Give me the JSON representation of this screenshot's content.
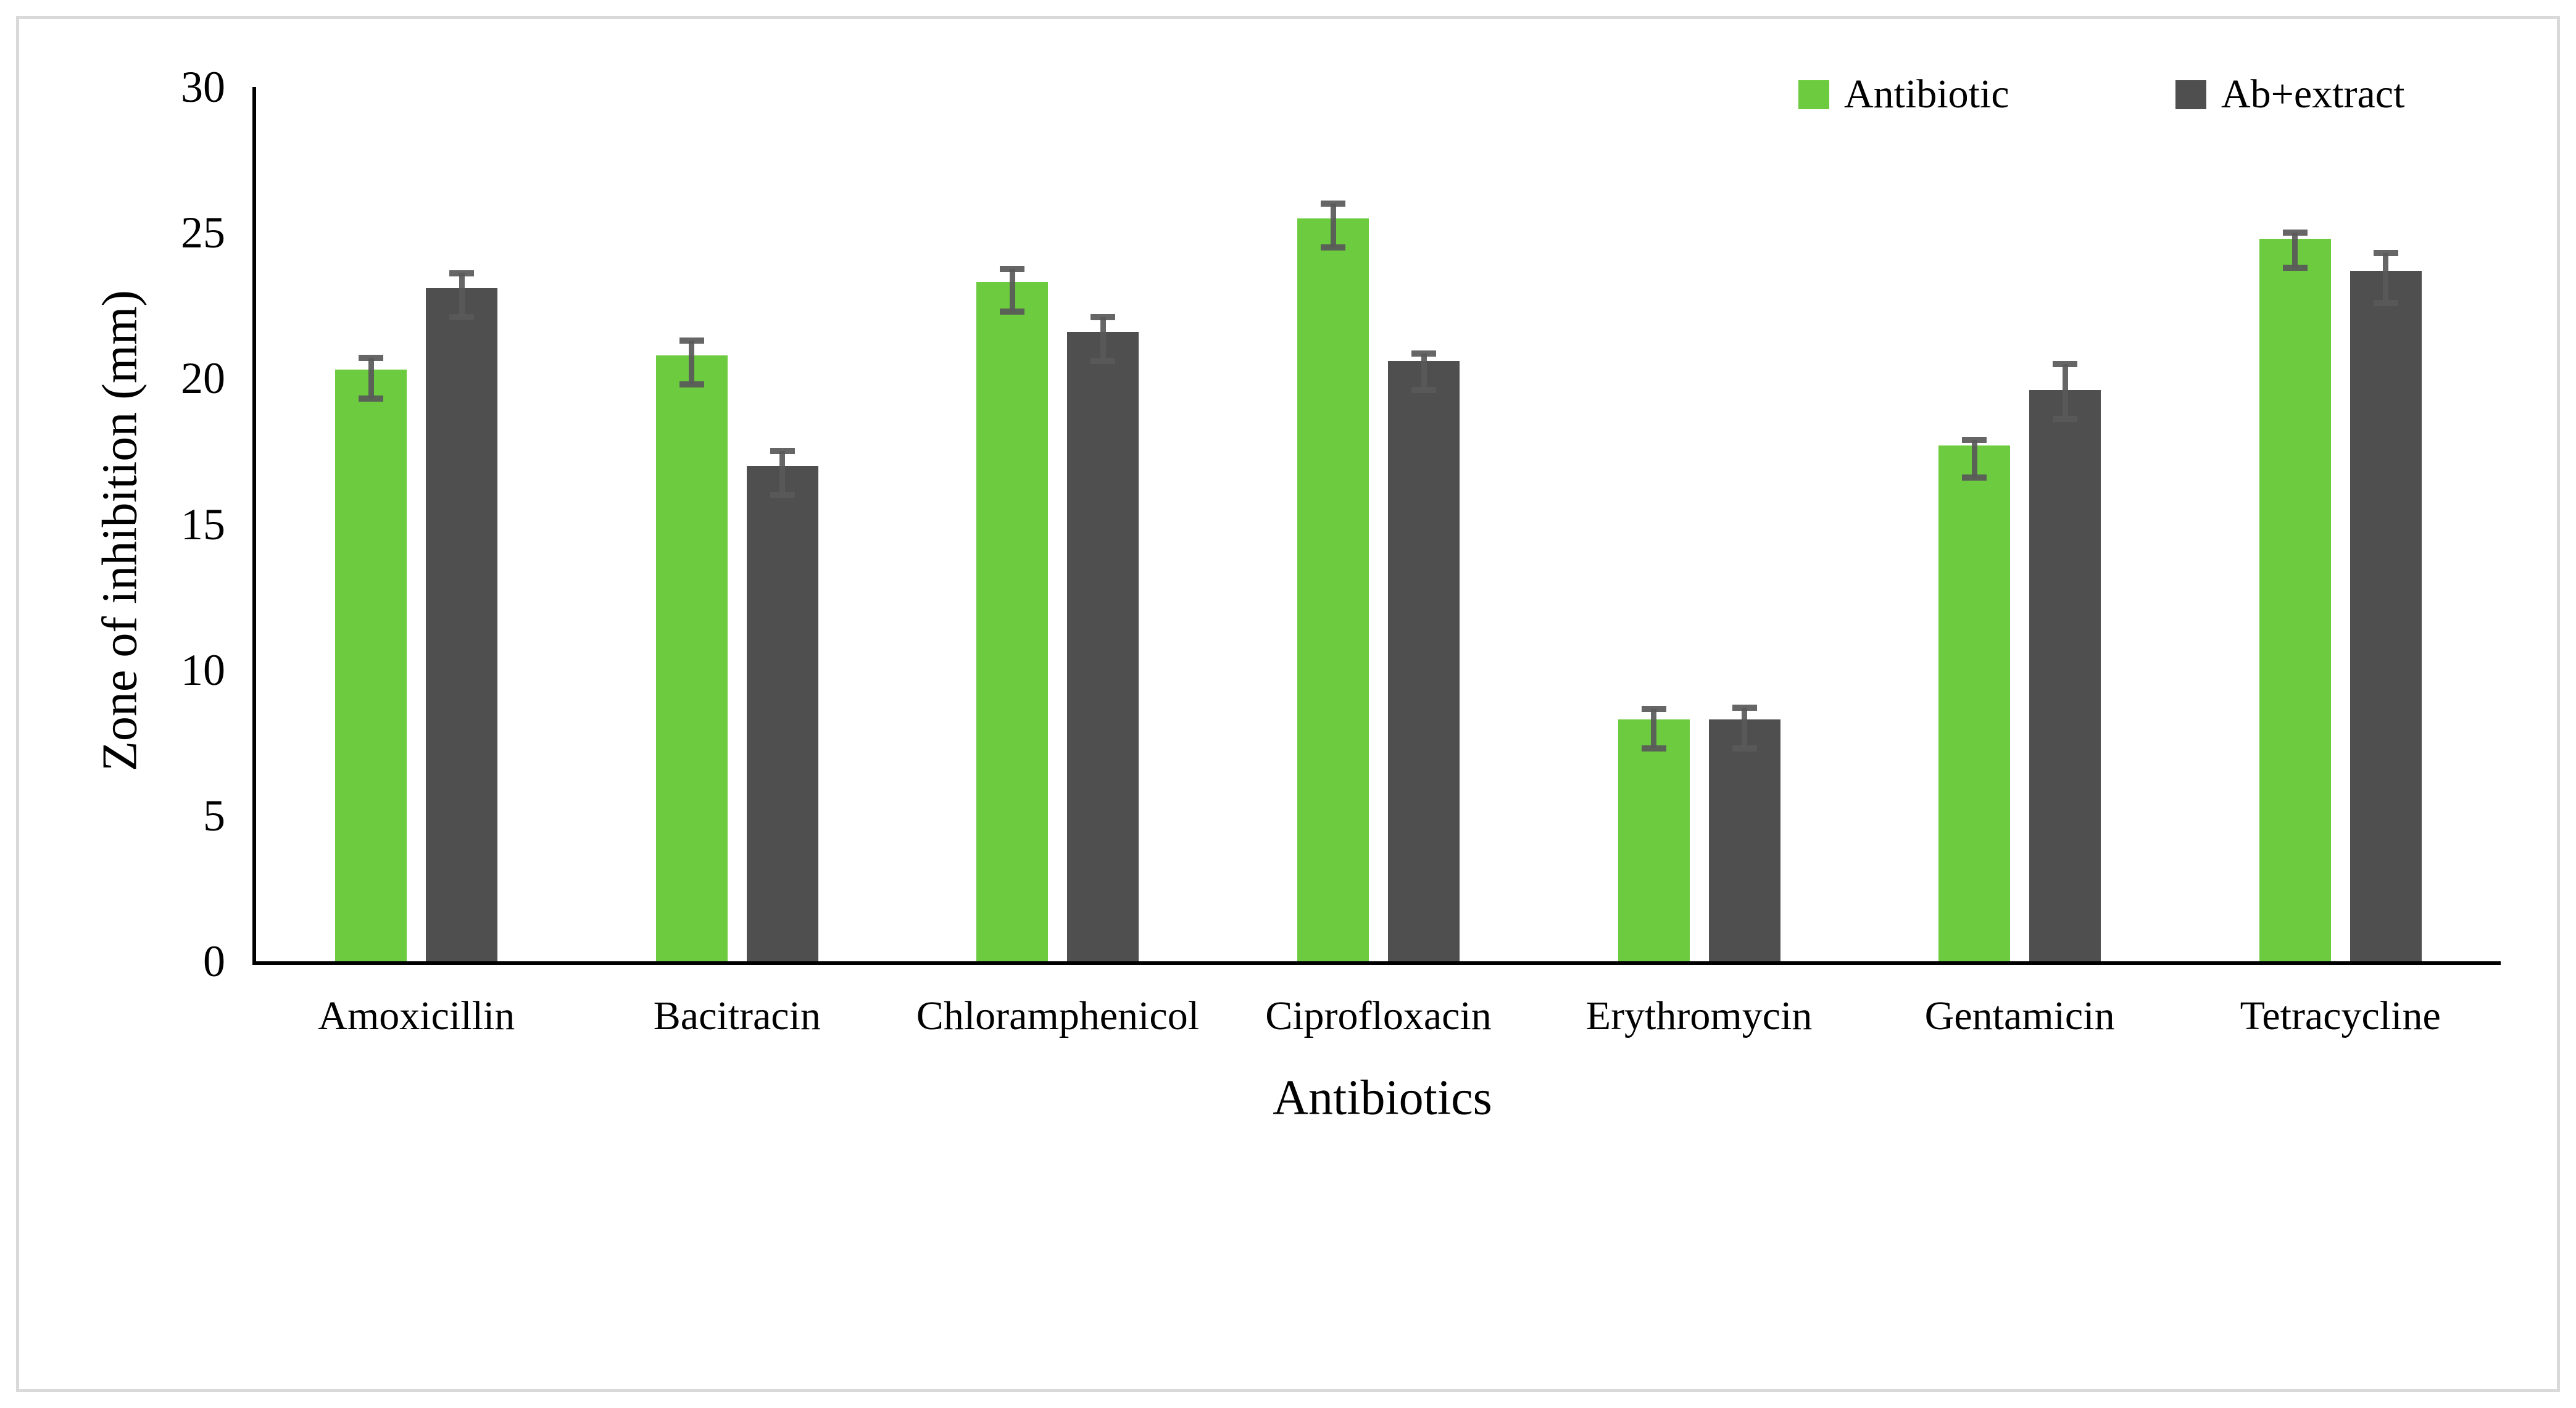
{
  "figure": {
    "background": "#FFFFFF",
    "border_color": "#D9D9D9"
  },
  "legend": {
    "items": [
      {
        "label": "Antibiotic",
        "color": "#6CCB3F"
      },
      {
        "label": "Ab+extract",
        "color": "#4F4F4F"
      }
    ]
  },
  "chart_data": {
    "type": "bar",
    "title": "",
    "xlabel": "Antibiotics",
    "ylabel": "Zone of inhibition (mm)",
    "ylim": [
      0,
      30
    ],
    "yticks": [
      0,
      5,
      10,
      15,
      20,
      25,
      30
    ],
    "grid": false,
    "legend_position": "top-right",
    "axis_color": "#000000",
    "error_bar_color": "#595959",
    "categories": [
      "Amoxicillin",
      "Bacitracin",
      "Chloramphenicol",
      "Ciprofloxacin",
      "Erythromycin",
      "Gentamicin",
      "Tetracycline"
    ],
    "series": [
      {
        "name": "Antibiotic",
        "color": "#6CCB3F",
        "values": [
          20.3,
          20.8,
          23.3,
          25.5,
          8.3,
          17.7,
          24.8
        ],
        "error_up": [
          0.4,
          0.5,
          0.45,
          0.5,
          0.35,
          0.2,
          0.2
        ],
        "error_down": [
          1.0,
          1.0,
          1.0,
          1.0,
          1.0,
          1.1,
          1.0
        ]
      },
      {
        "name": "Ab+extract",
        "color": "#4F4F4F",
        "values": [
          23.1,
          17.0,
          21.6,
          20.6,
          8.3,
          19.6,
          23.7
        ],
        "error_up": [
          0.5,
          0.5,
          0.5,
          0.25,
          0.4,
          0.9,
          0.6
        ],
        "error_down": [
          1.0,
          1.0,
          1.0,
          1.0,
          1.0,
          1.0,
          1.1
        ]
      }
    ]
  }
}
